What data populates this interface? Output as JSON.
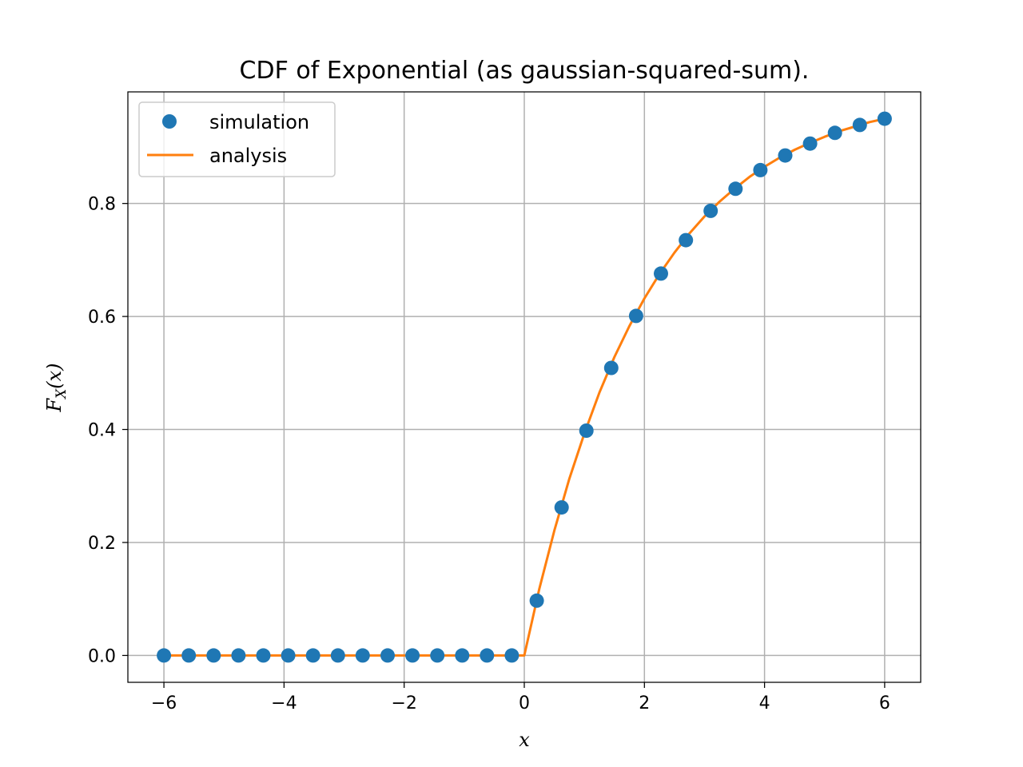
{
  "chart_data": {
    "type": "line",
    "title": "CDF of Exponential (as gaussian-squared-sum).",
    "xlabel": "x",
    "ylabel": "F_X(x)",
    "ylabel_main": "F",
    "ylabel_sub": "X",
    "ylabel_rest": "(x)",
    "xlim": [
      -6.6,
      6.6
    ],
    "ylim": [
      -0.0475,
      0.9975
    ],
    "xticks": [
      -6,
      -4,
      -2,
      0,
      2,
      4,
      6
    ],
    "xtick_labels": [
      "−6",
      "−4",
      "−2",
      "0",
      "2",
      "4",
      "6"
    ],
    "yticks": [
      0.0,
      0.2,
      0.4,
      0.6,
      0.8
    ],
    "ytick_labels": [
      "0.0",
      "0.2",
      "0.4",
      "0.6",
      "0.8"
    ],
    "grid": true,
    "legend_position": "top-left",
    "series": [
      {
        "name": "simulation",
        "style": "markers",
        "color": "#1f77b4",
        "x": [
          -6.0,
          -5.586,
          -5.172,
          -4.759,
          -4.345,
          -3.931,
          -3.517,
          -3.103,
          -2.69,
          -2.276,
          -1.862,
          -1.448,
          -1.034,
          -0.621,
          -0.207,
          0.207,
          0.621,
          1.034,
          1.448,
          1.862,
          2.276,
          2.69,
          3.103,
          3.517,
          3.931,
          4.345,
          4.759,
          5.172,
          5.586,
          6.0
        ],
        "y": [
          0.0,
          0.0,
          0.0,
          0.0,
          0.0,
          0.0,
          0.0,
          0.0,
          0.0,
          0.0,
          0.0,
          0.0,
          0.0,
          0.0,
          0.0,
          0.097,
          0.262,
          0.398,
          0.509,
          0.601,
          0.676,
          0.735,
          0.787,
          0.826,
          0.859,
          0.885,
          0.906,
          0.925,
          0.939,
          0.95
        ]
      },
      {
        "name": "analysis",
        "style": "line",
        "color": "#ff7f0e",
        "x": [
          -6.0,
          0.0,
          0.25,
          0.5,
          0.75,
          1.0,
          1.25,
          1.5,
          1.75,
          2.0,
          2.25,
          2.5,
          2.75,
          3.0,
          3.25,
          3.5,
          3.75,
          4.0,
          4.25,
          4.5,
          4.75,
          5.0,
          5.25,
          5.5,
          5.75,
          6.0
        ],
        "y": [
          0.0,
          0.0,
          0.118,
          0.221,
          0.313,
          0.393,
          0.465,
          0.528,
          0.583,
          0.632,
          0.675,
          0.713,
          0.747,
          0.777,
          0.803,
          0.826,
          0.847,
          0.865,
          0.881,
          0.895,
          0.907,
          0.918,
          0.928,
          0.936,
          0.944,
          0.95
        ]
      }
    ]
  }
}
